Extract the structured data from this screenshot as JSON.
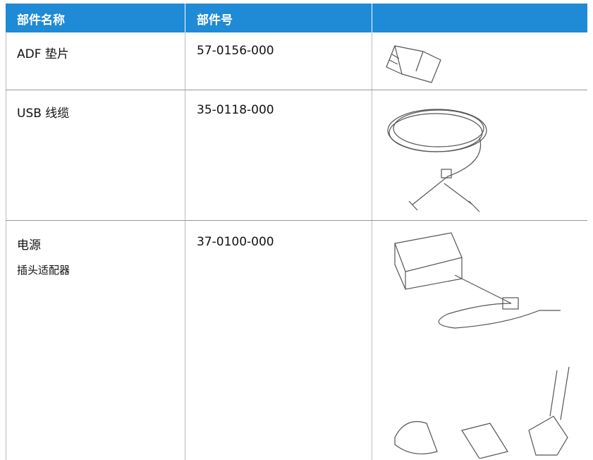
{
  "table": {
    "header": [
      "部件名称",
      "部件号"
    ],
    "rows": [
      {
        "name": "ADF 垫片",
        "part": "57-0156-000"
      },
      {
        "name": "USB 线缆",
        "part": "35-0118-000"
      },
      {
        "name": "电源",
        "note": "插头适配器",
        "part": "37-0100-000"
      }
    ]
  }
}
